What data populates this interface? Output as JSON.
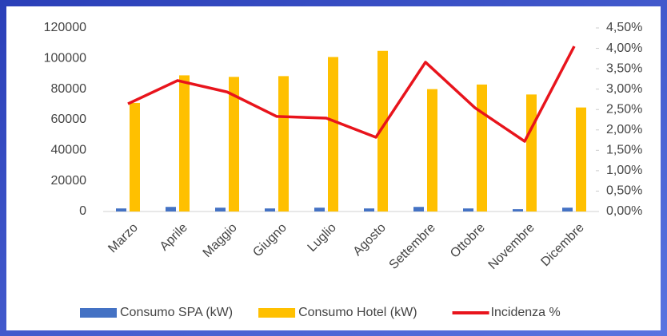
{
  "chart_data": {
    "type": "bar-line",
    "categories": [
      "Marzo",
      "Aprile",
      "Maggio",
      "Giugno",
      "Luglio",
      "Agosto",
      "Settembre",
      "Ottobre",
      "Novembre",
      "Dicembre"
    ],
    "series": [
      {
        "name": "Consumo SPA (kW)",
        "type": "bar",
        "color": "#4472c4",
        "values": [
          2000,
          3000,
          2500,
          2000,
          2500,
          2000,
          3000,
          2000,
          1500,
          2500
        ]
      },
      {
        "name": "Consumo Hotel (kW)",
        "type": "bar",
        "color": "#ffc000",
        "values": [
          71000,
          89000,
          88000,
          88500,
          101000,
          105000,
          80000,
          83000,
          76500,
          68000
        ]
      },
      {
        "name": "Incidenza %",
        "type": "line",
        "axis": "y2",
        "color": "#e8141c",
        "values": [
          2.64,
          3.21,
          2.93,
          2.33,
          2.29,
          1.82,
          3.66,
          2.54,
          1.72,
          4.05
        ]
      }
    ],
    "ylim": [
      0,
      120000
    ],
    "yticks": [
      0,
      20000,
      40000,
      60000,
      80000,
      100000,
      120000
    ],
    "y2lim": [
      0,
      4.5
    ],
    "y2ticks": [
      {
        "value": 0,
        "label": "0,00%"
      },
      {
        "value": 0.5,
        "label": "0,50%"
      },
      {
        "value": 1,
        "label": "1,00%"
      },
      {
        "value": 1.5,
        "label": "1,50%"
      },
      {
        "value": 2,
        "label": "2,00%"
      },
      {
        "value": 2.5,
        "label": "2,50%"
      },
      {
        "value": 3,
        "label": "3,00%"
      },
      {
        "value": 3.5,
        "label": "3,50%"
      },
      {
        "value": 4,
        "label": "4,00%"
      },
      {
        "value": 4.5,
        "label": "4,50%"
      }
    ],
    "grid": false,
    "legend": "bottom"
  }
}
